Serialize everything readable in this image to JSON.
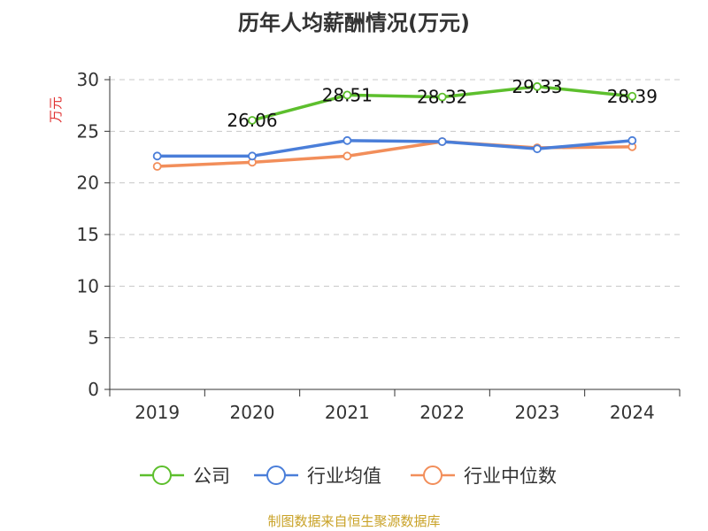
{
  "chart_data": {
    "type": "line",
    "title": "历年人均薪酬情况(万元)",
    "ylabel": "万元",
    "xlabel": "",
    "categories": [
      "2019",
      "2020",
      "2021",
      "2022",
      "2023",
      "2024"
    ],
    "ylim": [
      0,
      30
    ],
    "yticks": [
      "0",
      "5",
      "10",
      "15",
      "20",
      "25",
      "30"
    ],
    "grid": true,
    "legend_position": "bottom",
    "series": [
      {
        "name": "公司",
        "color": "#5dbf2d",
        "values": [
          null,
          26.06,
          28.51,
          28.32,
          29.33,
          28.39
        ],
        "labels": [
          "",
          "26.06",
          "28.51",
          "28.32",
          "29.33",
          "28.39"
        ]
      },
      {
        "name": "行业均值",
        "color": "#4a7ed9",
        "values": [
          22.6,
          22.6,
          24.1,
          24.0,
          23.3,
          24.1
        ]
      },
      {
        "name": "行业中位数",
        "color": "#f28e5a",
        "values": [
          21.6,
          22.0,
          22.6,
          24.0,
          23.4,
          23.5
        ]
      }
    ]
  },
  "source": {
    "text": "制图数据来自恒生聚源数据库",
    "color": "#c9a227"
  },
  "ylabel_color": "#e03030"
}
